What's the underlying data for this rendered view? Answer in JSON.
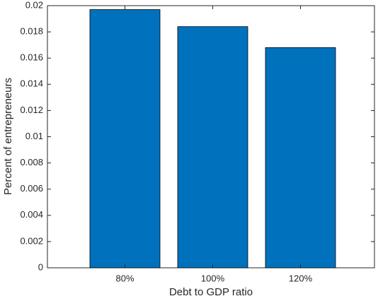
{
  "chart_data": {
    "type": "bar",
    "x_label": "Debt to GDP ratio",
    "y_label": "Percent of entrepreneurs",
    "categories": [
      "80%",
      "100%",
      "120%"
    ],
    "values": [
      0.0197,
      0.0184,
      0.0168
    ],
    "color": "#0072bd",
    "ylim": [
      0,
      0.02
    ],
    "yticks": [
      0,
      0.002,
      0.004,
      0.006,
      0.008,
      0.01,
      0.012,
      0.014,
      0.016,
      0.018,
      0.02
    ],
    "grid": false
  }
}
